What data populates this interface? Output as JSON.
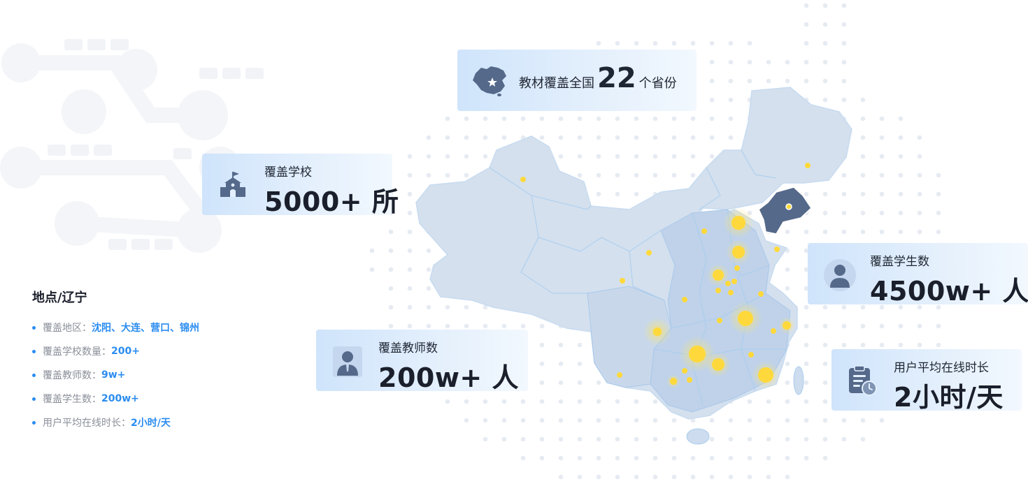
{
  "colors": {
    "accent": "#2a8cf0",
    "card_bg": "#d8e9fb",
    "map_fill": "#cfddec",
    "map_highlight": "#55698a",
    "hotspot": "#ffd93b"
  },
  "provinces_card": {
    "icon": "china-map-icon",
    "prefix": "教材覆盖全国",
    "number": "22",
    "suffix": "个省份"
  },
  "schools_card": {
    "icon": "school-icon",
    "label": "覆盖学校",
    "value": "5000+ 所"
  },
  "students_card": {
    "icon": "student-icon",
    "label": "覆盖学生数",
    "value": "4500w+ 人"
  },
  "teachers_card": {
    "icon": "teacher-icon",
    "label": "覆盖教师数",
    "value": "200w+ 人"
  },
  "online_card": {
    "icon": "schedule-clock-icon",
    "label": "用户平均在线时长",
    "value": "2小时/天"
  },
  "location": {
    "title": "地点/辽宁",
    "rows": [
      {
        "key": "覆盖地区：",
        "value": "沈阳、大连、营口、锦州"
      },
      {
        "key": "覆盖学校数量：",
        "value": "200+"
      },
      {
        "key": "覆盖教师数：",
        "value": "9w+"
      },
      {
        "key": "覆盖学生数：",
        "value": "200w+"
      },
      {
        "key": "用户平均在线时长：",
        "value": "2小时/天"
      }
    ]
  }
}
